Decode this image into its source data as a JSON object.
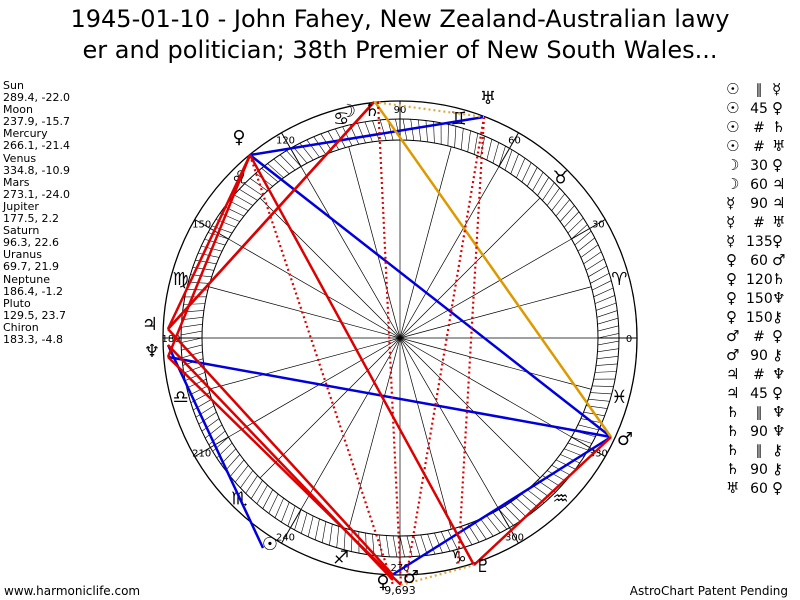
{
  "title_line1": "1945-01-10 - John Fahey, New Zealand-Australian lawy",
  "title_line2": "er and politician; 38th Premier of New South Wales...",
  "footer_left": "www.harmoniclife.com",
  "footer_right": "AstroChart Patent Pending",
  "planets": [
    {
      "name": "Sun",
      "coords": "289.4, -22.0"
    },
    {
      "name": "Moon",
      "coords": "237.9, -15.7"
    },
    {
      "name": "Mercury",
      "coords": "266.1, -21.4"
    },
    {
      "name": "Venus",
      "coords": "334.8, -10.9"
    },
    {
      "name": "Mars",
      "coords": "273.1, -24.0"
    },
    {
      "name": "Jupiter",
      "coords": "177.5, 2.2"
    },
    {
      "name": "Saturn",
      "coords": "96.3, 22.6"
    },
    {
      "name": "Uranus",
      "coords": "69.7, 21.9"
    },
    {
      "name": "Neptune",
      "coords": "186.4, -1.2"
    },
    {
      "name": "Pluto",
      "coords": "129.5, 23.7"
    },
    {
      "name": "Chiron",
      "coords": "183.3, -4.8"
    }
  ],
  "aspects": [
    {
      "p1": "☉",
      "type": "∥",
      "p2": "☿"
    },
    {
      "p1": "☉",
      "type": "45",
      "p2": "♀"
    },
    {
      "p1": "☉",
      "type": "#",
      "p2": "♄"
    },
    {
      "p1": "☉",
      "type": "#",
      "p2": "♅"
    },
    {
      "p1": "☽",
      "type": "30",
      "p2": "♀"
    },
    {
      "p1": "☽",
      "type": "60",
      "p2": "♃"
    },
    {
      "p1": "☿",
      "type": "90",
      "p2": "♃"
    },
    {
      "p1": "☿",
      "type": "#",
      "p2": "♅"
    },
    {
      "p1": "☿",
      "type": "135",
      "p2": "♀"
    },
    {
      "p1": "♀",
      "type": "60",
      "p2": "♂"
    },
    {
      "p1": "♀",
      "type": "120",
      "p2": "♄"
    },
    {
      "p1": "♀",
      "type": "150",
      "p2": "♆"
    },
    {
      "p1": "♀",
      "type": "150",
      "p2": "⚷"
    },
    {
      "p1": "♂",
      "type": "#",
      "p2": "♀"
    },
    {
      "p1": "♂",
      "type": "90",
      "p2": "⚷"
    },
    {
      "p1": "♃",
      "type": "#",
      "p2": "♆"
    },
    {
      "p1": "♃",
      "type": "45",
      "p2": "♀"
    },
    {
      "p1": "♄",
      "type": "∥",
      "p2": "♆"
    },
    {
      "p1": "♄",
      "type": "90",
      "p2": "♆"
    },
    {
      "p1": "♄",
      "type": "∥",
      "p2": "⚷"
    },
    {
      "p1": "♄",
      "type": "90",
      "p2": "⚷"
    },
    {
      "p1": "♅",
      "type": "60",
      "p2": "♀"
    }
  ],
  "chart_data": {
    "type": "astrological wheel",
    "degree_labels": [
      "0",
      "30",
      "60",
      "90",
      "120",
      "150",
      "180",
      "210",
      "240",
      "270",
      "300",
      "330"
    ],
    "zodiac_signs": [
      "♈",
      "♉",
      "♊",
      "♋",
      "♌",
      "♍",
      "♎",
      "♏",
      "♐",
      "♑",
      "♒",
      "♓"
    ],
    "bodies": [
      {
        "name": "Sun",
        "glyph": "☉",
        "longitude": 289.4
      },
      {
        "name": "Moon",
        "glyph": "☽",
        "longitude": 237.9
      },
      {
        "name": "Mercury",
        "glyph": "☿",
        "longitude": 266.1
      },
      {
        "name": "Venus",
        "glyph": "♀",
        "longitude": 334.8
      },
      {
        "name": "Mars",
        "glyph": "♂",
        "longitude": 273.1
      },
      {
        "name": "Jupiter",
        "glyph": "♃",
        "longitude": 177.5
      },
      {
        "name": "Saturn",
        "glyph": "♄",
        "longitude": 96.3
      },
      {
        "name": "Uranus",
        "glyph": "♅",
        "longitude": 69.7
      },
      {
        "name": "Neptune",
        "glyph": "♆",
        "longitude": 186.4
      },
      {
        "name": "Pluto",
        "glyph": "♇",
        "longitude": 129.5
      },
      {
        "name": "Chiron",
        "glyph": "⚷",
        "longitude": 183.3
      }
    ],
    "marked_bodies": [
      "♄",
      "♅",
      "♀",
      "♃",
      "♆",
      "☽",
      "☉",
      "♀"
    ],
    "aspect_lines": [
      {
        "from": "♀",
        "to": "♅",
        "color": "#0000dd",
        "style": "solid"
      },
      {
        "from": "♀",
        "to": "♀",
        "color": "#0000dd",
        "style": "solid"
      },
      {
        "from": "♆",
        "to": "♀",
        "color": "#0000dd",
        "style": "solid"
      },
      {
        "from": "♃",
        "to": "☽",
        "color": "#0000dd",
        "style": "solid"
      },
      {
        "from": "♀",
        "to": "☉",
        "color": "#0000dd",
        "style": "solid"
      },
      {
        "from": "♄",
        "to": "♀",
        "color": "#dd9900",
        "style": "solid"
      },
      {
        "from": "♀",
        "to": "♂",
        "color": "#dd0000",
        "style": "solid"
      },
      {
        "from": "♀",
        "to": "☿",
        "color": "#dd0000",
        "style": "solid"
      },
      {
        "from": "♄",
        "to": "♆",
        "color": "#dd0000",
        "style": "solid"
      },
      {
        "from": "♄",
        "to": "♃",
        "color": "#dd0000",
        "style": "solid"
      },
      {
        "from": "♄",
        "to": "⚷",
        "color": "#dd0000",
        "style": "solid"
      },
      {
        "from": "♃",
        "to": "☿",
        "color": "#dd0000",
        "style": "solid"
      },
      {
        "from": "♆",
        "to": "♂",
        "color": "#dd0000",
        "style": "solid"
      },
      {
        "from": "♀",
        "to": "⚷",
        "color": "#dd0000",
        "style": "solid"
      },
      {
        "from": "♀",
        "to": "☉",
        "color": "#dd0000",
        "style": "solid"
      },
      {
        "from": "♄",
        "to": "☿",
        "color": "#dd0000",
        "style": "dotted"
      },
      {
        "from": "♅",
        "to": "☿",
        "color": "#dd0000",
        "style": "dotted"
      },
      {
        "from": "♅",
        "to": "☉",
        "color": "#dd0000",
        "style": "dotted"
      },
      {
        "from": "♀",
        "to": "♂",
        "color": "#dd0000",
        "style": "dotted"
      },
      {
        "from": "☉",
        "to": "♀",
        "color": "#dd0000",
        "style": "dotted"
      },
      {
        "from": "♄",
        "to": "♅",
        "color": "#ddaa44",
        "style": "dotted"
      },
      {
        "from": "☿",
        "to": "☉",
        "color": "#ddaa44",
        "style": "dotted"
      }
    ],
    "near_bottom_labels": [
      "♄",
      "♃",
      "9,693"
    ]
  }
}
